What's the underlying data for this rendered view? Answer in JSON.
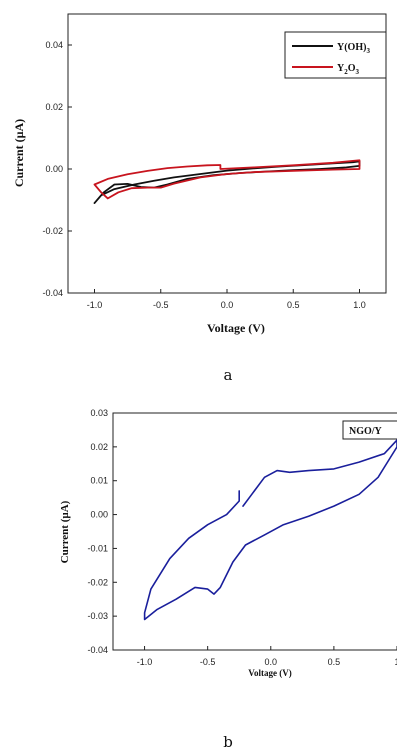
{
  "chart_data": [
    {
      "type": "line",
      "xlabel": "Voltage (V)",
      "ylabel": "Current (µA)",
      "xlim": [
        -1.2,
        1.2
      ],
      "ylim": [
        -0.04,
        0.05
      ],
      "x_ticks": [
        "-1.0",
        "-0.5",
        "0.0",
        "0.5",
        "1.0"
      ],
      "y_ticks": [
        "-0.04",
        "-0.02",
        "0.00",
        "0.02",
        "0.04"
      ],
      "legend_position": "top-right",
      "caption": "a",
      "series": [
        {
          "name": "Y(OH)3",
          "name_parts": {
            "base": "Y(OH)",
            "sub": "3"
          },
          "color": "#111111",
          "points": [
            [
              -1.0,
              -0.011
            ],
            [
              -0.95,
              -0.0085
            ],
            [
              -0.85,
              -0.0065
            ],
            [
              -0.7,
              -0.005
            ],
            [
              -0.55,
              -0.0038
            ],
            [
              -0.4,
              -0.0027
            ],
            [
              -0.2,
              -0.0016
            ],
            [
              0.0,
              -0.0005
            ],
            [
              0.2,
              0.0002
            ],
            [
              0.4,
              0.0008
            ],
            [
              0.6,
              0.0013
            ],
            [
              0.8,
              0.0018
            ],
            [
              0.95,
              0.0022
            ],
            [
              1.0,
              0.0025
            ],
            [
              1.0,
              0.001
            ],
            [
              0.9,
              0.0005
            ],
            [
              0.7,
              0.0
            ],
            [
              0.5,
              -0.0004
            ],
            [
              0.3,
              -0.0008
            ],
            [
              0.1,
              -0.0013
            ],
            [
              -0.1,
              -0.002
            ],
            [
              -0.3,
              -0.0032
            ],
            [
              -0.45,
              -0.005
            ],
            [
              -0.55,
              -0.006
            ],
            [
              -0.65,
              -0.0058
            ],
            [
              -0.75,
              -0.0048
            ],
            [
              -0.85,
              -0.005
            ],
            [
              -0.93,
              -0.0075
            ],
            [
              -1.0,
              -0.011
            ]
          ]
        },
        {
          "name": "Y2O3",
          "name_parts": {
            "base": "Y",
            "sub": "2",
            "base2": "O",
            "sub2": "3"
          },
          "color": "#c8141e",
          "points": [
            [
              -1.0,
              -0.005
            ],
            [
              -0.9,
              -0.0032
            ],
            [
              -0.75,
              -0.0017
            ],
            [
              -0.6,
              -0.0006
            ],
            [
              -0.45,
              0.0003
            ],
            [
              -0.3,
              0.0008
            ],
            [
              -0.15,
              0.0012
            ],
            [
              -0.05,
              0.0013
            ],
            [
              -0.05,
              0.0
            ],
            [
              0.2,
              0.0005
            ],
            [
              0.5,
              0.0012
            ],
            [
              0.8,
              0.002
            ],
            [
              0.95,
              0.0026
            ],
            [
              1.0,
              0.0028
            ],
            [
              1.0,
              0.0
            ],
            [
              0.8,
              -0.0002
            ],
            [
              0.5,
              -0.0006
            ],
            [
              0.2,
              -0.001
            ],
            [
              0.0,
              -0.0016
            ],
            [
              -0.2,
              -0.0027
            ],
            [
              -0.4,
              -0.0047
            ],
            [
              -0.5,
              -0.006
            ],
            [
              -0.6,
              -0.006
            ],
            [
              -0.72,
              -0.0062
            ],
            [
              -0.82,
              -0.0075
            ],
            [
              -0.9,
              -0.0095
            ],
            [
              -0.95,
              -0.0075
            ],
            [
              -1.0,
              -0.005
            ]
          ]
        }
      ]
    },
    {
      "type": "line",
      "xlabel": "Voltage (V)",
      "ylabel": "Current (µA)",
      "xlim": [
        -1.25,
        1.0
      ],
      "ylim": [
        -0.04,
        0.03
      ],
      "x_ticks": [
        "-1.0",
        "-0.5",
        "0.0",
        "0.5",
        "1"
      ],
      "y_ticks": [
        "-0.04",
        "-0.03",
        "-0.02",
        "-0.01",
        "0.00",
        "0.01",
        "0.02",
        "0.03"
      ],
      "legend_position": "top-right",
      "caption": "b",
      "series": [
        {
          "name": "NGO/Y",
          "color": "#1a1f9c",
          "points": [
            [
              -0.25,
              0.007
            ],
            [
              -0.25,
              0.004
            ],
            [
              -0.35,
              0.0
            ],
            [
              -0.5,
              -0.003
            ],
            [
              -0.65,
              -0.007
            ],
            [
              -0.8,
              -0.013
            ],
            [
              -0.95,
              -0.022
            ],
            [
              -1.0,
              -0.029
            ],
            [
              -1.0,
              -0.031
            ],
            [
              -0.9,
              -0.028
            ],
            [
              -0.75,
              -0.025
            ],
            [
              -0.6,
              -0.0215
            ],
            [
              -0.5,
              -0.022
            ],
            [
              -0.45,
              -0.0235
            ],
            [
              -0.4,
              -0.0215
            ],
            [
              -0.3,
              -0.014
            ],
            [
              -0.2,
              -0.009
            ],
            [
              -0.05,
              -0.006
            ],
            [
              0.1,
              -0.003
            ],
            [
              0.3,
              -0.0005
            ],
            [
              0.5,
              0.0025
            ],
            [
              0.7,
              0.006
            ],
            [
              0.85,
              0.011
            ],
            [
              0.95,
              0.017
            ],
            [
              1.0,
              0.02
            ],
            [
              1.0,
              0.022
            ],
            [
              0.9,
              0.018
            ],
            [
              0.7,
              0.0155
            ],
            [
              0.5,
              0.0135
            ],
            [
              0.3,
              0.013
            ],
            [
              0.15,
              0.0125
            ],
            [
              0.05,
              0.013
            ],
            [
              -0.05,
              0.011
            ],
            [
              -0.15,
              0.006
            ],
            [
              -0.22,
              0.0025
            ]
          ]
        }
      ]
    }
  ]
}
